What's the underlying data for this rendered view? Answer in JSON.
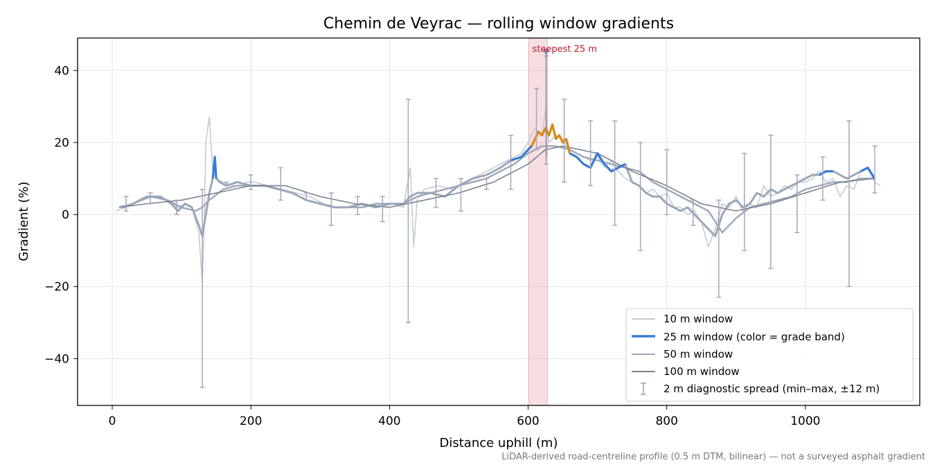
{
  "chart_data": {
    "type": "line",
    "title": "Chemin de Veyrac — rolling window gradients",
    "xlabel": "Distance uphill (m)",
    "ylabel": "Gradient (%)",
    "xlim": [
      -50,
      1165
    ],
    "ylim": [
      -53,
      49
    ],
    "x_ticks": [
      0,
      200,
      400,
      600,
      800,
      1000
    ],
    "y_ticks": [
      -40,
      -20,
      0,
      20,
      40
    ],
    "x_tick_labels": [
      "0",
      "200",
      "400",
      "600",
      "800",
      "1000"
    ],
    "y_tick_labels": [
      "−40",
      "−20",
      "0",
      "20",
      "40"
    ],
    "grid": true,
    "legend_position": "lower-right",
    "caption": "LiDAR-derived road-centreline profile (0.5 m DTM, bilinear) — not a surveyed asphalt gradient",
    "highlight": {
      "x_start": 601,
      "x_end": 628,
      "color": "#e8a1a8",
      "label": "steepest 25 m",
      "marker_x": 626,
      "marker_y": 45
    },
    "colors": {
      "w10": "#c5cbd3",
      "w25_blue": "#3a7bd5",
      "w25_orange": "#d98a14",
      "w50": "#9aa8b6",
      "w100": "#7a8290",
      "spread": "#a7a3c2",
      "highlight_text": "#c0182b"
    },
    "series": [
      {
        "name": "10 m window",
        "x": [
          5,
          20,
          40,
          60,
          80,
          95,
          105,
          115,
          125,
          130,
          133,
          135,
          140,
          145,
          150,
          160,
          175,
          185,
          195,
          205,
          225,
          245,
          265,
          285,
          305,
          325,
          345,
          365,
          385,
          405,
          420,
          430,
          435,
          440,
          450,
          470,
          490,
          510,
          530,
          550,
          570,
          590,
          600,
          610,
          620,
          625,
          630,
          640,
          650,
          660,
          670,
          680,
          690,
          700,
          710,
          720,
          730,
          740,
          750,
          760,
          770,
          780,
          790,
          800,
          810,
          820,
          830,
          840,
          850,
          860,
          870,
          880,
          890,
          900,
          910,
          920,
          930,
          940,
          950,
          960,
          970,
          980,
          990,
          1000,
          1010,
          1020,
          1030,
          1040,
          1050,
          1060,
          1070,
          1080,
          1090,
          1100,
          1108
        ],
        "y": [
          1,
          2,
          4,
          5,
          4,
          2,
          3,
          2,
          -5,
          -19,
          0,
          20,
          27,
          12,
          10,
          9,
          8,
          8,
          9,
          9,
          8,
          7,
          6,
          5,
          3,
          2,
          2,
          2,
          3,
          3,
          2,
          13,
          -9,
          4,
          7,
          8,
          7,
          9,
          11,
          13,
          15,
          17,
          20,
          24,
          22,
          29,
          20,
          22,
          21,
          18,
          17,
          16,
          15,
          16,
          13,
          15,
          12,
          10,
          9,
          8,
          6,
          7,
          5,
          6,
          2,
          2,
          0,
          1,
          -2,
          -9,
          -4,
          3,
          2,
          5,
          1,
          3,
          2,
          8,
          5,
          6,
          8,
          7,
          9,
          9,
          10,
          12,
          9,
          10,
          5,
          8,
          7,
          12,
          13,
          9,
          8
        ]
      },
      {
        "name": "25 m window (color = grade band)",
        "x": [
          15,
          30,
          50,
          70,
          85,
          95,
          105,
          115,
          125,
          130,
          135,
          140,
          145,
          148,
          150,
          155,
          165,
          180,
          200,
          220,
          240,
          260,
          280,
          300,
          320,
          340,
          360,
          380,
          400,
          420,
          430,
          440,
          460,
          480,
          500,
          520,
          540,
          560,
          575,
          590,
          600,
          605,
          610,
          615,
          620,
          625,
          630,
          635,
          640,
          645,
          650,
          655,
          660,
          670,
          680,
          690,
          700,
          710,
          720,
          730,
          740,
          750,
          760,
          770,
          780,
          790,
          800,
          810,
          820,
          830,
          840,
          850,
          860,
          870,
          880,
          890,
          900,
          910,
          920,
          930,
          940,
          950,
          960,
          970,
          980,
          990,
          1000,
          1010,
          1020,
          1030,
          1040,
          1050,
          1060,
          1070,
          1080,
          1090,
          1100
        ],
        "y": [
          2,
          3,
          5,
          5,
          3,
          1,
          3,
          2,
          -3,
          -6,
          0,
          6,
          10,
          16,
          10,
          9,
          8,
          9,
          8,
          8,
          7,
          6,
          4,
          3,
          2,
          2,
          3,
          2,
          3,
          3,
          5,
          6,
          6,
          5,
          8,
          10,
          11,
          13,
          15,
          16,
          18,
          19,
          21,
          23,
          22,
          24,
          22,
          25,
          21,
          22,
          20,
          21,
          17,
          16,
          14,
          13,
          17,
          14,
          12,
          13,
          14,
          9,
          8,
          6,
          5,
          5,
          3,
          2,
          1,
          2,
          0,
          -2,
          -4,
          -6,
          0,
          3,
          4,
          2,
          3,
          6,
          5,
          7,
          6,
          7,
          8,
          9,
          10,
          11,
          11,
          12,
          12,
          11,
          10,
          11,
          12,
          13,
          10
        ]
      },
      {
        "name": "50 m window",
        "x": [
          10,
          30,
          55,
          80,
          100,
          120,
          130,
          140,
          160,
          180,
          200,
          220,
          240,
          260,
          280,
          300,
          320,
          340,
          360,
          380,
          400,
          420,
          440,
          460,
          480,
          500,
          520,
          540,
          560,
          580,
          600,
          620,
          640,
          660,
          680,
          700,
          720,
          740,
          760,
          780,
          800,
          820,
          840,
          860,
          870,
          880,
          900,
          920,
          940,
          960,
          980,
          1000,
          1020,
          1040,
          1060,
          1080,
          1100
        ],
        "y": [
          2,
          3,
          5,
          4,
          2,
          1,
          2,
          4,
          7,
          8,
          8,
          8,
          7,
          6,
          4,
          3,
          2,
          2,
          2,
          3,
          3,
          3,
          5,
          6,
          7,
          8,
          9,
          10,
          12,
          14,
          17,
          19,
          19,
          18,
          16,
          15,
          14,
          13,
          12,
          9,
          7,
          5,
          3,
          1,
          -2,
          -5,
          -1,
          2,
          3,
          4,
          5,
          7,
          8,
          9,
          9,
          10,
          10
        ]
      },
      {
        "name": "100 m window",
        "x": [
          10,
          50,
          100,
          150,
          200,
          250,
          300,
          350,
          400,
          450,
          500,
          550,
          600,
          625,
          650,
          700,
          750,
          800,
          850,
          900,
          950,
          1000,
          1050,
          1100
        ],
        "y": [
          2,
          3,
          4,
          6,
          8,
          8,
          5,
          3,
          2,
          4,
          6,
          9,
          14,
          18,
          19,
          17,
          12,
          8,
          3,
          1,
          3,
          6,
          9,
          10
        ]
      }
    ],
    "w25_orange_segments": [
      [
        605,
        660
      ]
    ],
    "w25_blue_segments": [
      [
        145,
        150
      ],
      [
        575,
        605
      ],
      [
        660,
        745
      ],
      [
        1020,
        1045
      ],
      [
        1075,
        1100
      ]
    ],
    "spread": {
      "name": "2 m diagnostic spread (min–max, ±12 m)",
      "x": [
        20,
        55,
        93,
        130,
        165,
        200,
        243,
        280,
        316,
        354,
        390,
        427,
        467,
        503,
        540,
        575,
        612,
        626,
        652,
        690,
        725,
        762,
        800,
        838,
        875,
        912,
        950,
        988,
        1025,
        1063,
        1100
      ],
      "lo": [
        1,
        3,
        0,
        -48,
        8,
        7,
        4,
        4,
        -3,
        0,
        -2,
        -30,
        2,
        1,
        7,
        7,
        18,
        14,
        9,
        8,
        -3,
        -10,
        0,
        -3,
        -23,
        -10,
        -15,
        -5,
        4,
        -20,
        6
      ],
      "hi": [
        5,
        6,
        4,
        7,
        9,
        11,
        13,
        6,
        6,
        5,
        5,
        32,
        10,
        10,
        10,
        22,
        35,
        44,
        32,
        26,
        26,
        20,
        18,
        4,
        4,
        17,
        22,
        11,
        16,
        26,
        19
      ]
    }
  }
}
